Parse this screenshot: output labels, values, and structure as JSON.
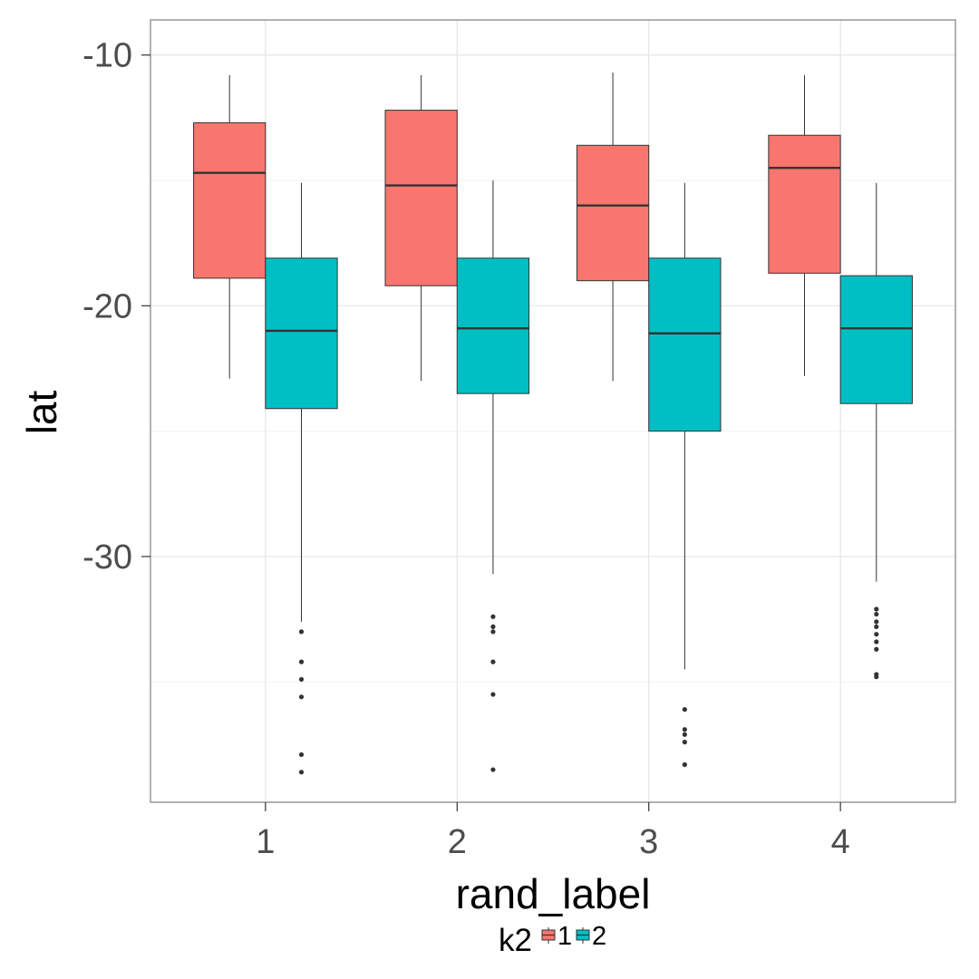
{
  "chart_data": {
    "type": "box",
    "xlabel": "rand_label",
    "ylabel": "lat",
    "categories": [
      "1",
      "2",
      "3",
      "4"
    ],
    "y_ticks": [
      -10,
      -20,
      -30
    ],
    "y_tick_labels": [
      "-10",
      "-20",
      "-30"
    ],
    "ylim": [
      -39.8,
      -8.6
    ],
    "grid": true,
    "legend": {
      "title": "k2",
      "position": "bottom",
      "entries": [
        {
          "label": "1",
          "color": "#F8766D"
        },
        {
          "label": "2",
          "color": "#00BFC4"
        }
      ]
    },
    "series": [
      {
        "name": "1",
        "color": "#F8766D",
        "boxes": [
          {
            "min": -22.9,
            "q1": -18.9,
            "median": -14.7,
            "q3": -12.7,
            "max": -10.8,
            "outliers": []
          },
          {
            "min": -23.0,
            "q1": -19.2,
            "median": -15.2,
            "q3": -12.2,
            "max": -10.8,
            "outliers": []
          },
          {
            "min": -23.0,
            "q1": -19.0,
            "median": -16.0,
            "q3": -13.6,
            "max": -10.7,
            "outliers": []
          },
          {
            "min": -22.8,
            "q1": -18.7,
            "median": -14.5,
            "q3": -13.2,
            "max": -10.8,
            "outliers": []
          }
        ]
      },
      {
        "name": "2",
        "color": "#00BFC4",
        "boxes": [
          {
            "min": -32.6,
            "q1": -24.1,
            "median": -21.0,
            "q3": -18.1,
            "max": -15.1,
            "outliers": [
              -33.0,
              -34.2,
              -34.9,
              -35.6,
              -37.9,
              -38.6
            ]
          },
          {
            "min": -30.7,
            "q1": -23.5,
            "median": -20.9,
            "q3": -18.1,
            "max": -15.0,
            "outliers": [
              -32.4,
              -32.8,
              -33.0,
              -34.2,
              -35.5,
              -38.5
            ]
          },
          {
            "min": -34.5,
            "q1": -25.0,
            "median": -21.1,
            "q3": -18.1,
            "max": -15.1,
            "outliers": [
              -36.1,
              -36.9,
              -37.1,
              -37.4,
              -38.3
            ]
          },
          {
            "min": -31.0,
            "q1": -23.9,
            "median": -20.9,
            "q3": -18.8,
            "max": -15.1,
            "outliers": [
              -32.1,
              -32.3,
              -32.6,
              -32.8,
              -33.1,
              -33.4,
              -33.7,
              -34.7,
              -34.8
            ]
          }
        ]
      }
    ]
  }
}
